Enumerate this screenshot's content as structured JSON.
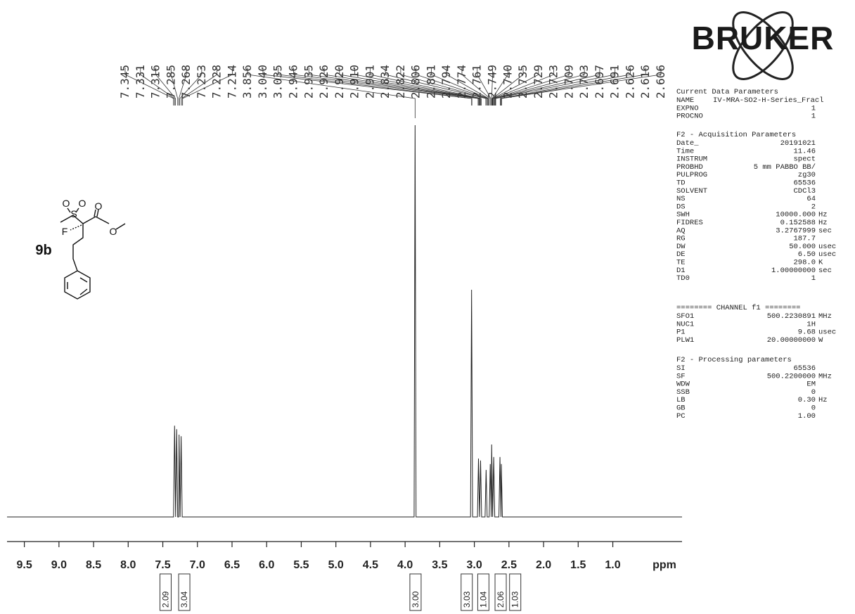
{
  "chart_data": {
    "type": "spectrum",
    "xlabel": "ppm",
    "xlim": [
      9.75,
      0
    ],
    "ylim": [
      0,
      100
    ],
    "xticks": [
      9.5,
      {
        "value": 9,
        "label": "9.0"
      },
      8.5,
      {
        "value": 8,
        "label": "8.0"
      },
      7.5,
      {
        "value": 7,
        "label": "7.0"
      },
      6.5,
      {
        "value": 6,
        "label": "6.0"
      },
      5.5,
      {
        "value": 5,
        "label": "5.0"
      },
      4.5,
      {
        "value": 4,
        "label": "4.0"
      },
      3.5,
      {
        "value": 3,
        "label": "3.0"
      },
      2.5,
      {
        "value": 2,
        "label": "2.0"
      },
      1.5,
      {
        "value": 1,
        "label": "1.0"
      }
    ],
    "color": "#222222",
    "x": [
      9.75,
      7.345,
      7.33,
      7.315,
      7.3,
      7.285,
      7.27,
      7.265,
      7.25,
      7.235,
      7.22,
      7.205,
      3.87,
      3.856,
      3.842,
      3.055,
      3.04,
      3.025,
      2.955,
      2.94,
      2.925,
      2.91,
      2.895,
      2.845,
      2.83,
      2.815,
      2.785,
      2.77,
      2.755,
      2.75,
      2.735,
      2.72,
      2.705,
      2.645,
      2.63,
      2.615,
      2.61,
      2.595,
      0
    ],
    "values": [
      0,
      0,
      23.3,
      0,
      22.4,
      0,
      0,
      21,
      0,
      20.6,
      0,
      0,
      0,
      100,
      0,
      0,
      58,
      0,
      0,
      14.9,
      0,
      14.4,
      0,
      0,
      12,
      0,
      0,
      13.5,
      0,
      18.5,
      0,
      15.3,
      0,
      0,
      15.3,
      0,
      13.5,
      0,
      0
    ],
    "peak_labels": [
      7.345,
      7.331,
      7.316,
      7.285,
      7.268,
      7.253,
      7.228,
      7.214,
      3.856,
      {
        "value": 3.04,
        "label": "3.040"
      },
      3.035,
      2.946,
      2.935,
      2.926,
      {
        "value": 2.92,
        "label": "2.920"
      },
      {
        "value": 2.91,
        "label": "2.910"
      },
      2.901,
      2.834,
      2.822,
      2.806,
      2.801,
      2.794,
      2.774,
      2.761,
      2.749,
      {
        "value": 2.74,
        "label": "2.740"
      },
      2.735,
      2.729,
      2.723,
      2.709,
      2.703,
      2.697,
      2.691,
      2.626,
      2.616,
      2.606
    ],
    "integrals": {
      "x": [
        7.46,
        7.19,
        3.85,
        3.11,
        2.87,
        2.62,
        2.41
      ],
      "values": [
        2.09,
        3.04,
        3,
        3.03,
        1.04,
        2.06,
        1.03
      ],
      "value_labels": [
        "2.09",
        "3.04",
        "3.00",
        "3.03",
        "1.04",
        "2.06",
        "1.03"
      ]
    }
  },
  "structure": {
    "label": "9b",
    "atoms": [
      "O",
      "O",
      "S",
      "O",
      "F",
      "O"
    ]
  },
  "logo": "BRUKER",
  "parameters": [
    {
      "title": "Current Data Parameters",
      "rows": [
        [
          "NAME",
          "IV-MRA-SO2-H-Series_Fracl"
        ],
        [
          "EXPNO",
          "1"
        ],
        [
          "PROCNO",
          "1"
        ]
      ]
    },
    {
      "title": "F2 - Acquisition Parameters",
      "rows": [
        [
          "Date_",
          "20191021"
        ],
        [
          "Time",
          "11.46"
        ],
        [
          "INSTRUM",
          "spect"
        ],
        [
          "PROBHD",
          "5 mm PABBO BB/"
        ],
        [
          "PULPROG",
          "zg30"
        ],
        [
          "TD",
          "65536"
        ],
        [
          "SOLVENT",
          "CDCl3"
        ],
        [
          "NS",
          "64"
        ],
        [
          "DS",
          "2"
        ],
        [
          "SWH",
          "10000.000",
          "Hz"
        ],
        [
          "FIDRES",
          "0.152588",
          "Hz"
        ],
        [
          "AQ",
          "3.2767999",
          "sec"
        ],
        [
          "RG",
          "187.7"
        ],
        [
          "DW",
          "50.000",
          "usec"
        ],
        [
          "DE",
          "6.50",
          "usec"
        ],
        [
          "TE",
          "298.0",
          "K"
        ],
        [
          "D1",
          "1.00000000",
          "sec"
        ],
        [
          "TD0",
          "1"
        ]
      ]
    },
    {
      "title": "======== CHANNEL f1 ========",
      "rows": [
        [
          "SFO1",
          "500.2230891",
          "MHz"
        ],
        [
          "NUC1",
          "1H"
        ],
        [
          "P1",
          "9.68",
          "usec"
        ],
        [
          "PLW1",
          "20.00000000",
          "W"
        ]
      ]
    },
    {
      "title": "F2 - Processing parameters",
      "rows": [
        [
          "SI",
          "65536"
        ],
        [
          "SF",
          "500.2200000",
          "MHz"
        ],
        [
          "WDW",
          "EM"
        ],
        [
          "SSB",
          "0"
        ],
        [
          "LB",
          "0.30",
          "Hz"
        ],
        [
          "GB",
          "0"
        ],
        [
          "PC",
          "1.00"
        ]
      ]
    }
  ]
}
